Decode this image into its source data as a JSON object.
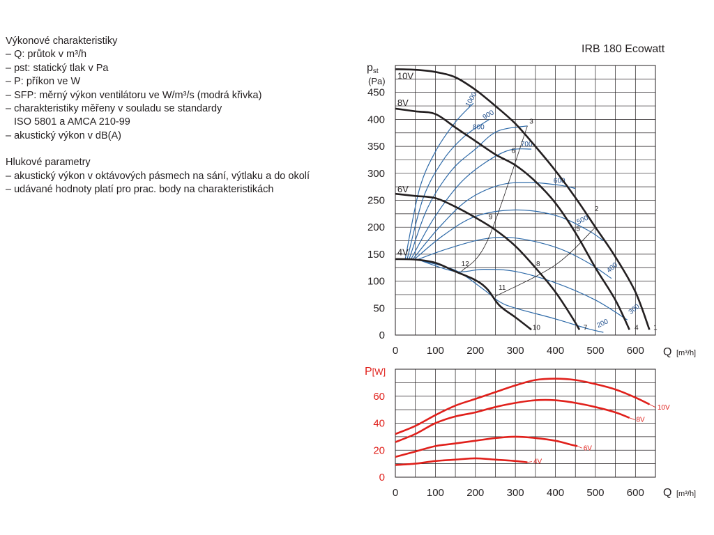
{
  "description": {
    "perf_heading": "Výkonové charakteristiky",
    "perf_items": [
      "– Q: průtok v m³/h",
      "– pst: statický tlak v Pa",
      "– P: příkon ve W",
      "– SFP: měrný výkon ventilátoru ve W/m³/s (modrá křivka)",
      "– charakteristiky měřeny v souladu se standardy",
      "ISO 5801 a AMCA 210-99",
      "– akustický výkon v dB(A)"
    ],
    "noise_heading": "Hlukové parametry",
    "noise_items": [
      "– akustický výkon v oktávových pásmech na sání, výtlaku a do okolí",
      "– udávané hodnoty platí pro prac. body na charakteristikách"
    ]
  },
  "colors": {
    "fan_curve": "#231f20",
    "sfp_curve": "#2e6aa8",
    "sfp_label": "#1f4e8c",
    "power_curve": "#e0201b",
    "grid": "#231f20"
  },
  "chart_data": [
    {
      "type": "line",
      "title": "IRB 180 Ecowatt",
      "ylabel_main": "p",
      "ylabel_sub": "st",
      "yunit": "(Pa)",
      "xlabel": "Q",
      "xunit": "[m³/h]",
      "xlim": [
        0,
        650
      ],
      "ylim": [
        0,
        500
      ],
      "xticks": [
        0,
        100,
        200,
        300,
        400,
        500,
        600
      ],
      "yticks": [
        0,
        50,
        100,
        150,
        200,
        250,
        300,
        350,
        400,
        450
      ],
      "grid": true,
      "series": [
        {
          "name": "10V",
          "points": [
            [
              0,
              493
            ],
            [
              50,
              492
            ],
            [
              100,
              488
            ],
            [
              150,
              478
            ],
            [
              200,
              455
            ],
            [
              250,
              425
            ],
            [
              300,
              392
            ],
            [
              350,
              350
            ],
            [
              400,
              305
            ],
            [
              450,
              255
            ],
            [
              500,
              200
            ],
            [
              550,
              145
            ],
            [
              600,
              80
            ],
            [
              635,
              10
            ]
          ]
        },
        {
          "name": "8V",
          "points": [
            [
              0,
              420
            ],
            [
              50,
              415
            ],
            [
              100,
              410
            ],
            [
              150,
              385
            ],
            [
              200,
              360
            ],
            [
              250,
              335
            ],
            [
              300,
              315
            ],
            [
              350,
              285
            ],
            [
              400,
              245
            ],
            [
              450,
              190
            ],
            [
              500,
              125
            ],
            [
              550,
              65
            ],
            [
              585,
              10
            ]
          ]
        },
        {
          "name": "6V",
          "points": [
            [
              0,
              262
            ],
            [
              50,
              258
            ],
            [
              100,
              254
            ],
            [
              150,
              238
            ],
            [
              200,
              218
            ],
            [
              250,
              195
            ],
            [
              300,
              165
            ],
            [
              350,
              125
            ],
            [
              400,
              80
            ],
            [
              440,
              35
            ],
            [
              460,
              10
            ]
          ]
        },
        {
          "name": "4V",
          "points": [
            [
              0,
              141
            ],
            [
              50,
              140
            ],
            [
              100,
              134
            ],
            [
              150,
              118
            ],
            [
              200,
              102
            ],
            [
              230,
              85
            ],
            [
              260,
              55
            ],
            [
              300,
              33
            ],
            [
              340,
              10
            ]
          ]
        }
      ],
      "sfp_series": [
        {
          "name": "1000",
          "points": [
            [
              25,
              142
            ],
            [
              60,
              270
            ],
            [
              100,
              340
            ],
            [
              150,
              395
            ],
            [
              195,
              430
            ]
          ]
        },
        {
          "name": "900",
          "points": [
            [
              30,
              142
            ],
            [
              70,
              255
            ],
            [
              120,
              325
            ],
            [
              175,
              370
            ],
            [
              235,
              400
            ]
          ]
        },
        {
          "name": "800",
          "points": [
            [
              35,
              142
            ],
            [
              80,
              235
            ],
            [
              140,
              305
            ],
            [
              200,
              345
            ],
            [
              255,
              378
            ],
            [
              330,
              388
            ]
          ]
        },
        {
          "name": "700",
          "points": [
            [
              40,
              142
            ],
            [
              95,
              215
            ],
            [
              160,
              280
            ],
            [
              225,
              320
            ],
            [
              285,
              343
            ],
            [
              340,
              345
            ]
          ]
        },
        {
          "name": "600",
          "points": [
            [
              45,
              142
            ],
            [
              110,
              200
            ],
            [
              180,
              250
            ],
            [
              260,
              278
            ],
            [
              335,
              283
            ],
            [
              410,
              278
            ],
            [
              450,
              272
            ]
          ]
        },
        {
          "name": "500",
          "points": [
            [
              50,
              142
            ],
            [
              120,
              185
            ],
            [
              200,
              220
            ],
            [
              300,
              232
            ],
            [
              400,
              222
            ],
            [
              480,
              195
            ],
            [
              520,
              175
            ]
          ]
        },
        {
          "name": "400",
          "points": [
            [
              55,
              140
            ],
            [
              130,
              160
            ],
            [
              220,
              178
            ],
            [
              300,
              180
            ],
            [
              400,
              163
            ],
            [
              480,
              135
            ],
            [
              540,
              105
            ]
          ]
        },
        {
          "name": "300",
          "points": [
            [
              60,
              139
            ],
            [
              150,
              118
            ],
            [
              220,
              122
            ],
            [
              300,
              118
            ],
            [
              400,
              97
            ],
            [
              500,
              65
            ],
            [
              580,
              28
            ]
          ]
        },
        {
          "name": "200",
          "points": [
            [
              70,
              137
            ],
            [
              150,
              120
            ],
            [
              220,
              85
            ],
            [
              260,
              62
            ],
            [
              300,
              50
            ],
            [
              400,
              30
            ],
            [
              480,
              12
            ],
            [
              520,
              5
            ]
          ]
        }
      ],
      "operating_points": [
        "1",
        "2",
        "3",
        "4",
        "5",
        "6",
        "7",
        "8",
        "9",
        "10",
        "11",
        "12"
      ],
      "sfp_labels": [
        "1000",
        "900",
        "800",
        "700",
        "600",
        "500",
        "400",
        "300",
        "200"
      ]
    },
    {
      "type": "line",
      "ylabel_main": "P",
      "yunit": "[W]",
      "xlabel": "Q",
      "xunit": "[m³/h]",
      "xlim": [
        0,
        650
      ],
      "ylim": [
        0,
        80
      ],
      "xticks": [
        0,
        100,
        200,
        300,
        400,
        500,
        600
      ],
      "yticks": [
        0,
        20,
        40,
        60
      ],
      "grid": true,
      "series": [
        {
          "name": "10V",
          "points": [
            [
              0,
              32
            ],
            [
              50,
              38
            ],
            [
              100,
              46
            ],
            [
              150,
              53
            ],
            [
              200,
              58
            ],
            [
              250,
              63
            ],
            [
              300,
              68
            ],
            [
              350,
              72
            ],
            [
              400,
              73
            ],
            [
              450,
              72
            ],
            [
              500,
              69
            ],
            [
              550,
              65
            ],
            [
              600,
              59
            ],
            [
              635,
              54
            ]
          ]
        },
        {
          "name": "8V",
          "points": [
            [
              0,
              26
            ],
            [
              50,
              32
            ],
            [
              100,
              40
            ],
            [
              150,
              45
            ],
            [
              200,
              48
            ],
            [
              250,
              52
            ],
            [
              300,
              55
            ],
            [
              350,
              57
            ],
            [
              400,
              57
            ],
            [
              450,
              55
            ],
            [
              500,
              52
            ],
            [
              550,
              48
            ],
            [
              585,
              44
            ]
          ]
        },
        {
          "name": "6V",
          "points": [
            [
              0,
              15
            ],
            [
              50,
              19
            ],
            [
              100,
              23
            ],
            [
              150,
              25
            ],
            [
              200,
              27
            ],
            [
              250,
              29
            ],
            [
              300,
              30
            ],
            [
              350,
              29
            ],
            [
              400,
              27
            ],
            [
              440,
              24
            ],
            [
              455,
              23
            ]
          ]
        },
        {
          "name": "4V",
          "points": [
            [
              0,
              9
            ],
            [
              50,
              10
            ],
            [
              100,
              12
            ],
            [
              150,
              13
            ],
            [
              200,
              14
            ],
            [
              250,
              13
            ],
            [
              300,
              12
            ],
            [
              330,
              11
            ]
          ]
        }
      ]
    }
  ]
}
